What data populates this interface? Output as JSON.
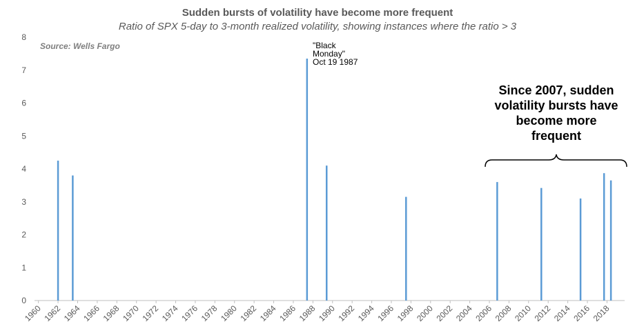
{
  "chart_data": {
    "type": "bar",
    "title": "Sudden bursts of volatility  have become more frequent",
    "subtitle": "Ratio of SPX 5-day to 3-month realized volatility, showing instances where the ratio > 3",
    "source": "Source: Wells Fargo",
    "x": [
      1962.0,
      1963.5,
      1987.4,
      1989.4,
      1997.5,
      2006.8,
      2011.3,
      2015.3,
      2017.7,
      2018.4
    ],
    "values": [
      4.25,
      3.8,
      7.35,
      4.1,
      3.15,
      3.6,
      3.42,
      3.1,
      3.87,
      3.65
    ],
    "color": "#5b9bd5",
    "xlim": [
      1959.6,
      2019.8
    ],
    "xticks": [
      1960,
      1962,
      1964,
      1966,
      1968,
      1970,
      1972,
      1974,
      1976,
      1978,
      1980,
      1982,
      1984,
      1986,
      1988,
      1990,
      1992,
      1994,
      1996,
      1998,
      2000,
      2002,
      2004,
      2006,
      2008,
      2010,
      2012,
      2014,
      2016,
      2018
    ],
    "ylim": [
      0,
      8
    ],
    "yticks": [
      0,
      1,
      2,
      3,
      4,
      5,
      6,
      7,
      8
    ],
    "grid": false,
    "annotations": [
      {
        "lines": [
          "\"Black",
          "Monday\"",
          "Oct 19 1987"
        ]
      },
      {
        "lines": [
          "Since 2007, sudden",
          "volatility bursts have",
          "become more",
          "frequent"
        ]
      }
    ]
  }
}
